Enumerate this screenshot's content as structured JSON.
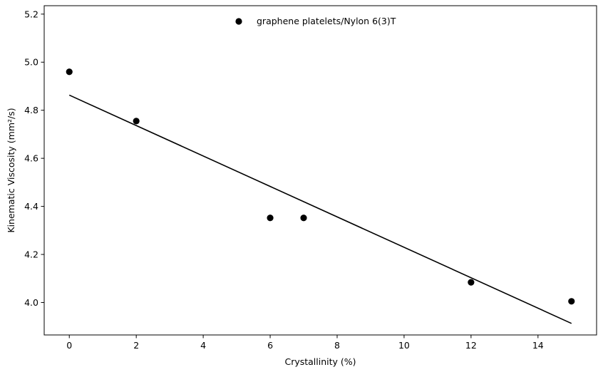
{
  "chart_data": {
    "type": "scatter",
    "title": "",
    "xlabel": "Crystallinity (%)",
    "ylabel": "Kinematic Viscosity (mm²/s)",
    "xlim": [
      -0.75,
      15.75
    ],
    "ylim": [
      3.865,
      5.235
    ],
    "xticks": [
      0,
      2,
      4,
      6,
      8,
      10,
      12,
      14
    ],
    "yticks": [
      4.0,
      4.2,
      4.4,
      4.6,
      4.8,
      5.0,
      5.2
    ],
    "xtick_labels": [
      "0",
      "2",
      "4",
      "6",
      "8",
      "10",
      "12",
      "14"
    ],
    "ytick_labels": [
      "4.0",
      "4.2",
      "4.4",
      "4.6",
      "4.8",
      "5.0",
      "5.2"
    ],
    "grid": false,
    "legend_position": "top-center",
    "series": [
      {
        "name": "graphene platelets/Nylon 6(3)T",
        "kind": "scatter",
        "color": "#000000",
        "x": [
          0,
          2,
          6,
          7,
          12,
          15
        ],
        "y": [
          4.96,
          4.755,
          4.352,
          4.352,
          4.084,
          4.005
        ]
      },
      {
        "kind": "line",
        "color": "#000000",
        "x": [
          0,
          15
        ],
        "y": [
          4.863,
          3.913
        ]
      }
    ]
  }
}
